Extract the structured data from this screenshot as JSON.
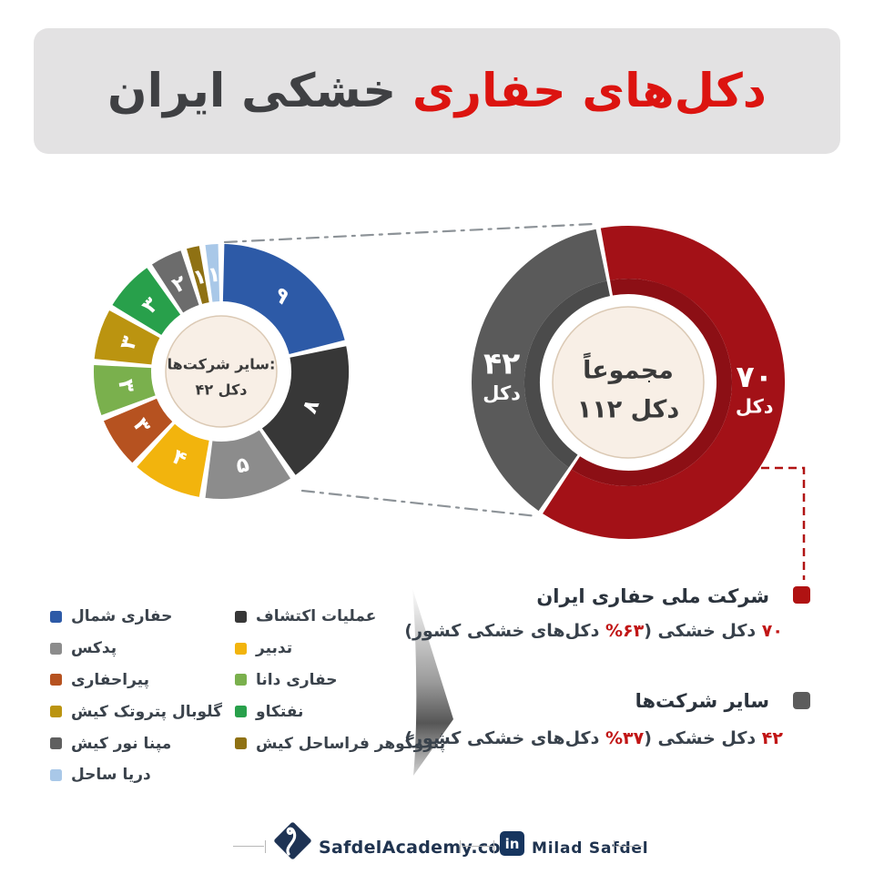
{
  "title": {
    "red": "دکل‌های حفاری",
    "dark": "خشکی ایران"
  },
  "colors": {
    "title_red": "#dc1410",
    "accent_red": "#c11616",
    "main_red": "#a31117",
    "main_gray": "#5a5a5a",
    "navy": "#203450",
    "cream_center": "#f8efe6"
  },
  "chart_data": [
    {
      "type": "donut",
      "name": "total-rigs-donut",
      "center_lines": [
        "مجموعاً",
        "۱۱۲ دکل"
      ],
      "total": 112,
      "series": [
        {
          "name": "شرکت ملی حفاری ایران",
          "value": 70,
          "percent": 63,
          "label": "۷۰",
          "sublabel": "دکل",
          "color": "#a31117",
          "inner_color": "#8c0f15"
        },
        {
          "name": "سایر شرکت‌ها",
          "value": 42,
          "percent": 37,
          "label": "۴۲",
          "sublabel": "دکل",
          "color": "#5a5a5a",
          "inner_color": "#4b4b4b"
        }
      ]
    },
    {
      "type": "donut",
      "name": "other-companies-breakdown-donut",
      "center_lines": [
        "سایر شرکت‌ها:",
        "۴۲ دکل"
      ],
      "total": 42,
      "series": [
        {
          "name": "حفاری شمال",
          "value": 9,
          "label": "۹",
          "color": "#2d5aa7"
        },
        {
          "name": "عملیات اکتشاف",
          "value": 8,
          "label": "۸",
          "color": "#373737"
        },
        {
          "name": "پدکس",
          "value": 5,
          "label": "۵",
          "color": "#8c8c8c"
        },
        {
          "name": "تدبیر",
          "value": 4,
          "label": "۴",
          "color": "#f2b40d"
        },
        {
          "name": "پیراحفاری",
          "value": 3,
          "label": "۳",
          "color": "#b65220"
        },
        {
          "name": "حفاری دانا",
          "value": 3,
          "label": "۳",
          "color": "#7ab04d"
        },
        {
          "name": "گلوبال پتروتک کیش",
          "value": 3,
          "label": "۳",
          "color": "#bb9410"
        },
        {
          "name": "نفتکاو",
          "value": 3,
          "label": "۳",
          "color": "#28a04b"
        },
        {
          "name": "مپنا نور کیش",
          "value": 2,
          "label": "۲",
          "color": "#6c6c6c"
        },
        {
          "name": "پتروگوهر فراساحل کیش",
          "value": 1,
          "label": "۱",
          "color": "#8f7113"
        },
        {
          "name": "دریا ساحل",
          "value": 1,
          "label": "۱",
          "color": "#a9c8e8"
        }
      ]
    }
  ],
  "company_legend": {
    "columns": [
      {
        "items": [
          {
            "label": "حفاری شمال",
            "color": "#2d5aa7"
          },
          {
            "label": "پدکس",
            "color": "#8c8c8c"
          },
          {
            "label": "پیراحفاری",
            "color": "#b65220"
          },
          {
            "label": "گلوبال پتروتک کیش",
            "color": "#bb9410"
          },
          {
            "label": "مپنا نور کیش",
            "color": "#5f5f5f"
          },
          {
            "label": "دریا ساحل",
            "color": "#a9c8e8"
          }
        ]
      },
      {
        "items": [
          {
            "label": "عملیات اکتشاف",
            "color": "#373737"
          },
          {
            "label": "تدبیر",
            "color": "#f2b40d"
          },
          {
            "label": "حفاری دانا",
            "color": "#7ab04d"
          },
          {
            "label": "نفتکاو",
            "color": "#28a04b"
          },
          {
            "label": "پتروگوهر فراساحل کیش",
            "color": "#8f7113"
          }
        ]
      }
    ]
  },
  "right_legend": {
    "items": [
      {
        "title": "شرکت ملی حفاری ایران",
        "swatch": "#b01212",
        "stat_prefix": "۷۰",
        "stat_mid": " دکل خشکی (",
        "stat_pct": "۶۳%",
        "stat_suffix": " دکل‌های خشکی کشور)"
      },
      {
        "title": "سایر شرکت‌ها",
        "swatch": "#5c5c5c",
        "stat_prefix": "۴۲",
        "stat_mid": " دکل خشکی (",
        "stat_pct": "۳۷%",
        "stat_suffix": " دکل‌های خشکی کشور)"
      }
    ]
  },
  "footer": {
    "site": "SafdelAcademy.com",
    "linkedin_icon": "in",
    "linkedin_name": "Milad Safdel"
  }
}
